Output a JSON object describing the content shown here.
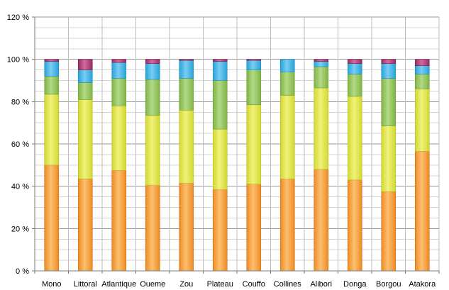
{
  "chart_data": {
    "type": "bar",
    "stacked": true,
    "percent_stacked": true,
    "categories": [
      "Mono",
      "Littoral",
      "Atlantique",
      "Oueme",
      "Zou",
      "Plateau",
      "Couffo",
      "Collines",
      "Alibori",
      "Donga",
      "Borgou",
      "Atakora"
    ],
    "series": [
      {
        "values": [
          50,
          43.5,
          47.5,
          40.5,
          41.5,
          38.5,
          41,
          43.5,
          48,
          43,
          37.5,
          56.5
        ]
      },
      {
        "values": [
          33.5,
          37.5,
          30.5,
          33,
          34.5,
          28.5,
          37.5,
          39.5,
          38.5,
          39.5,
          31,
          29.5
        ]
      },
      {
        "values": [
          8.5,
          8,
          13,
          17,
          15,
          23,
          16.5,
          11,
          10,
          10.5,
          22.5,
          7
        ]
      },
      {
        "values": [
          7,
          6,
          7.5,
          7.5,
          8.5,
          9,
          4.5,
          6,
          2.5,
          5,
          7,
          4
        ]
      },
      {
        "values": [
          1,
          5,
          1.5,
          2,
          0.5,
          1,
          0.5,
          0,
          1,
          2,
          2,
          3
        ]
      }
    ],
    "series_colors": [
      "#f5a044",
      "#e2e84a",
      "#95c55a",
      "#41b5e8",
      "#b23c78"
    ],
    "y_axis": {
      "min": 0,
      "max": 120,
      "step": 20,
      "tick_labels": [
        "0 %",
        "20 %",
        "40 %",
        "60 %",
        "80 %",
        "100 %",
        "120 %"
      ]
    },
    "gridlines": true,
    "minor_gridlines": true,
    "legend": "none",
    "title": "",
    "xlabel": "",
    "ylabel": ""
  }
}
